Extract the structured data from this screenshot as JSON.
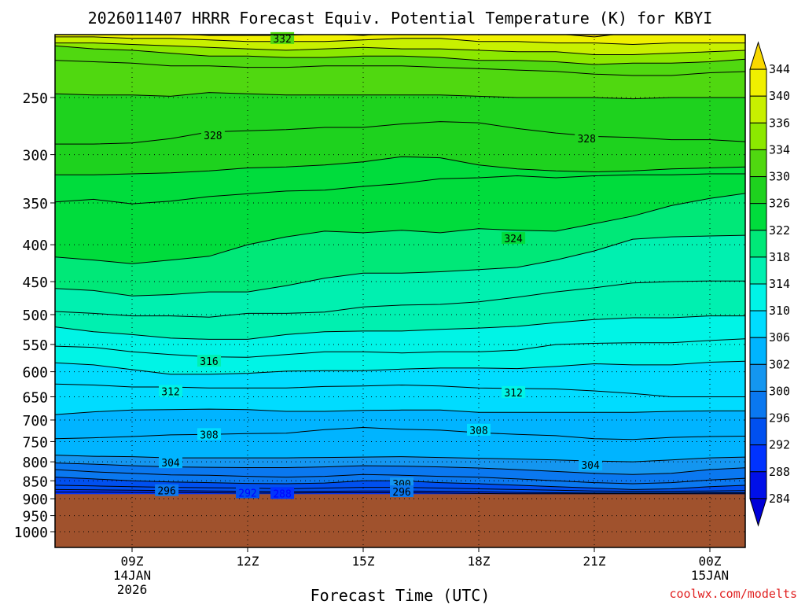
{
  "chart_data": {
    "type": "time-height cross section (filled contour)",
    "title": "2026011407 HRRR Forecast Equiv. Potential Temperature (K) for KBYI",
    "xlabel": "Forecast Time (UTC)",
    "ylabel": "",
    "credit": "coolwx.com/modelts",
    "x_ticks": [
      {
        "t": 9,
        "label": "09Z",
        "label2": "14JAN",
        "label3": "2026"
      },
      {
        "t": 12,
        "label": "12Z",
        "label2": "",
        "label3": ""
      },
      {
        "t": 15,
        "label": "15Z",
        "label2": "",
        "label3": ""
      },
      {
        "t": 18,
        "label": "18Z",
        "label2": "",
        "label3": ""
      },
      {
        "t": 21,
        "label": "21Z",
        "label2": "",
        "label3": ""
      },
      {
        "t": 24,
        "label": "00Z",
        "label2": "15JAN",
        "label3": ""
      }
    ],
    "xlim_hours": [
      7.0,
      25.0
    ],
    "y_ticks": [
      250,
      300,
      350,
      400,
      450,
      500,
      550,
      600,
      650,
      700,
      750,
      800,
      850,
      900,
      950,
      1000
    ],
    "ylim_hpa": [
      200,
      1010
    ],
    "surface_pressure_hpa": 887,
    "colorbar": {
      "labels": [
        284,
        288,
        292,
        296,
        300,
        302,
        306,
        310,
        314,
        318,
        322,
        326,
        330,
        334,
        336,
        340,
        344
      ],
      "colors": [
        "#0000d8",
        "#0010e8",
        "#0033ff",
        "#0050f0",
        "#0a78f0",
        "#1496f0",
        "#00b4ff",
        "#00dcff",
        "#00f4e6",
        "#00f0b0",
        "#00e878",
        "#00dc3c",
        "#1ed21e",
        "#50d810",
        "#8ce800",
        "#c8f000",
        "#f0f000",
        "#f8d800"
      ]
    },
    "contour_labels": [
      {
        "value": 332,
        "t": 12.9,
        "p": 207
      },
      {
        "value": 328,
        "t": 11.1,
        "p": 282
      },
      {
        "value": 328,
        "t": 20.8,
        "p": 285
      },
      {
        "value": 324,
        "t": 18.9,
        "p": 392
      },
      {
        "value": 316,
        "t": 11.0,
        "p": 580
      },
      {
        "value": 312,
        "t": 10.0,
        "p": 639
      },
      {
        "value": 312,
        "t": 18.9,
        "p": 641
      },
      {
        "value": 308,
        "t": 11.0,
        "p": 733
      },
      {
        "value": 308,
        "t": 18.0,
        "p": 723
      },
      {
        "value": 304,
        "t": 10.0,
        "p": 802
      },
      {
        "value": 304,
        "t": 20.9,
        "p": 808
      },
      {
        "value": 300,
        "t": 16.0,
        "p": 858
      },
      {
        "value": 296,
        "t": 16.0,
        "p": 880
      },
      {
        "value": 296,
        "t": 9.9,
        "p": 877
      },
      {
        "value": 292,
        "t": 12.0,
        "p": 883
      },
      {
        "value": 288,
        "t": 12.9,
        "p": 885
      }
    ],
    "contours": [
      {
        "value": 344,
        "p": [
          202,
          203,
          204,
          204,
          205,
          205,
          205,
          204,
          205,
          203,
          202,
          204,
          203,
          204,
          206,
          203,
          203,
          202,
          202
        ]
      },
      {
        "value": 340,
        "p": [
          206,
          206,
          207,
          207,
          208,
          209,
          209,
          209,
          208,
          207,
          207,
          209,
          209,
          210,
          210,
          211,
          210,
          210,
          210
        ]
      },
      {
        "value": 336,
        "p": [
          210,
          210,
          211,
          212,
          213,
          214,
          215,
          214,
          213,
          214,
          214,
          215,
          216,
          216,
          218,
          218,
          217,
          216,
          215
        ]
      },
      {
        "value": 334,
        "p": [
          212,
          214,
          215,
          217,
          219,
          219,
          220,
          220,
          219,
          219,
          220,
          222,
          222,
          223,
          225,
          224,
          224,
          223,
          221
        ]
      },
      {
        "value": 332,
        "p": [
          222,
          223,
          224,
          226,
          226,
          227,
          227,
          226,
          226,
          226,
          227,
          228,
          229,
          230,
          232,
          233,
          233,
          231,
          230
        ]
      },
      {
        "value": 330,
        "p": [
          247,
          248,
          248,
          249,
          246,
          247,
          248,
          248,
          248,
          248,
          248,
          249,
          250,
          250,
          250,
          251,
          250,
          250,
          250
        ]
      },
      {
        "value": 328,
        "p": [
          290,
          290,
          289,
          285,
          279,
          278,
          277,
          275,
          275,
          272,
          270,
          271,
          276,
          280,
          283,
          284,
          286,
          286,
          288
        ]
      },
      {
        "value": 326,
        "p": [
          320,
          320,
          319,
          318,
          316,
          313,
          312,
          310,
          307,
          302,
          303,
          310,
          314,
          316,
          317,
          316,
          314,
          313,
          312
        ]
      },
      {
        "value": 324,
        "p": [
          349,
          346,
          351,
          348,
          343,
          340,
          337,
          336,
          332,
          329,
          324,
          323,
          321,
          323,
          321,
          320,
          320,
          319,
          319
        ]
      },
      {
        "value": 322,
        "p": [
          416,
          420,
          425,
          420,
          415,
          400,
          390,
          383,
          385,
          382,
          385,
          380,
          382,
          383,
          374,
          365,
          353,
          345,
          339
        ]
      },
      {
        "value": 318,
        "p": [
          460,
          463,
          471,
          469,
          465,
          465,
          456,
          445,
          438,
          438,
          436,
          433,
          430,
          420,
          408,
          393,
          390,
          389,
          388
        ]
      },
      {
        "value": 316,
        "p": [
          495,
          498,
          502,
          502,
          504,
          498,
          498,
          496,
          488,
          485,
          484,
          480,
          473,
          465,
          459,
          452,
          450,
          449,
          449
        ]
      },
      {
        "value": 314,
        "p": [
          520,
          528,
          533,
          539,
          541,
          541,
          533,
          528,
          527,
          527,
          524,
          522,
          519,
          513,
          508,
          505,
          505,
          502,
          502
        ]
      },
      {
        "value": 312,
        "p": [
          553,
          555,
          563,
          568,
          572,
          573,
          568,
          563,
          563,
          565,
          563,
          563,
          560,
          550,
          548,
          547,
          547,
          543,
          540
        ]
      },
      {
        "value": 310,
        "p": [
          583,
          587,
          596,
          605,
          605,
          603,
          599,
          598,
          598,
          595,
          593,
          593,
          594,
          590,
          585,
          587,
          587,
          582,
          580
        ]
      },
      {
        "value": 308,
        "p": [
          624,
          626,
          630,
          630,
          632,
          632,
          632,
          629,
          628,
          626,
          628,
          632,
          633,
          634,
          638,
          643,
          650,
          650,
          650
        ]
      },
      {
        "value": 306,
        "p": [
          688,
          682,
          678,
          677,
          676,
          677,
          681,
          681,
          679,
          678,
          678,
          683,
          683,
          683,
          683,
          683,
          681,
          680,
          680
        ]
      },
      {
        "value": 304,
        "p": [
          743,
          741,
          738,
          734,
          733,
          731,
          730,
          722,
          717,
          721,
          723,
          729,
          733,
          736,
          743,
          745,
          740,
          738,
          737
        ]
      },
      {
        "value": 302,
        "p": [
          783,
          786,
          787,
          790,
          790,
          790,
          790,
          789,
          788,
          787,
          789,
          791,
          793,
          795,
          798,
          800,
          795,
          790,
          788
        ]
      },
      {
        "value": 300,
        "p": [
          803,
          806,
          810,
          813,
          814,
          815,
          815,
          813,
          810,
          811,
          813,
          816,
          820,
          825,
          830,
          833,
          830,
          820,
          815
        ]
      },
      {
        "value": 298,
        "p": [
          820,
          826,
          830,
          834,
          835,
          838,
          840,
          838,
          833,
          835,
          838,
          840,
          845,
          850,
          855,
          858,
          855,
          848,
          843
        ]
      },
      {
        "value": 296,
        "p": [
          840,
          845,
          850,
          853,
          855,
          857,
          858,
          856,
          850,
          850,
          855,
          858,
          862,
          866,
          870,
          874,
          872,
          866,
          862
        ]
      },
      {
        "value": 294,
        "p": [
          862,
          864,
          866,
          868,
          869,
          870,
          872,
          870,
          868,
          868,
          870,
          872,
          874,
          876,
          878,
          879,
          879,
          878,
          877
        ]
      },
      {
        "value": 292,
        "p": [
          874,
          875,
          876,
          877,
          878,
          879,
          880,
          879,
          878,
          878,
          879,
          880,
          882,
          883,
          884,
          884,
          884,
          883,
          883
        ]
      },
      {
        "value": 290,
        "p": [
          881,
          881,
          882,
          882,
          883,
          884,
          884,
          883,
          883,
          883,
          884,
          885,
          886,
          886,
          886,
          886,
          886,
          886,
          886
        ]
      }
    ]
  }
}
